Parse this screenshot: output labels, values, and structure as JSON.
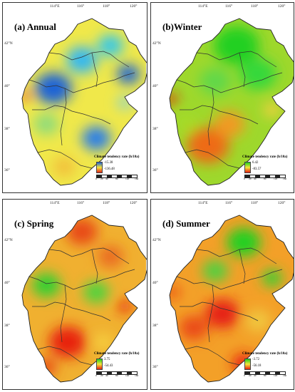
{
  "axes": {
    "longitudes": [
      "114°E",
      "116°",
      "118°",
      "120°"
    ],
    "latitudes": [
      "42°N",
      "40°",
      "38°",
      "36°"
    ]
  },
  "scale_bar": [
    "0",
    "20",
    "40",
    "80",
    "120",
    "160"
  ],
  "panels": [
    {
      "id": "annual",
      "title": "(a) Annual",
      "legend_title": "Climate tendency rate (h/10a)",
      "legend_high": "-15.38",
      "legend_low": "-136.48",
      "high_color": "#1e63d6",
      "low_color": "#e02418"
    },
    {
      "id": "winter",
      "title": "(b)Winter",
      "legend_title": "Climate tendency rate (h/10a)",
      "legend_high": "6.42",
      "legend_low": "-83.57",
      "high_color": "#20d020",
      "low_color": "#e82010"
    },
    {
      "id": "spring",
      "title": "(c) Spring",
      "legend_title": "Climate tendency rate (h/10a)",
      "legend_high": "3.75",
      "legend_low": "-54.43",
      "high_color": "#20d020",
      "low_color": "#e82010"
    },
    {
      "id": "summer",
      "title": "(d) Summer",
      "legend_title": "Climate tendency rate (h/10a)",
      "legend_high": "-3.72",
      "legend_low": "-56.18",
      "high_color": "#20d020",
      "low_color": "#e82010"
    }
  ]
}
